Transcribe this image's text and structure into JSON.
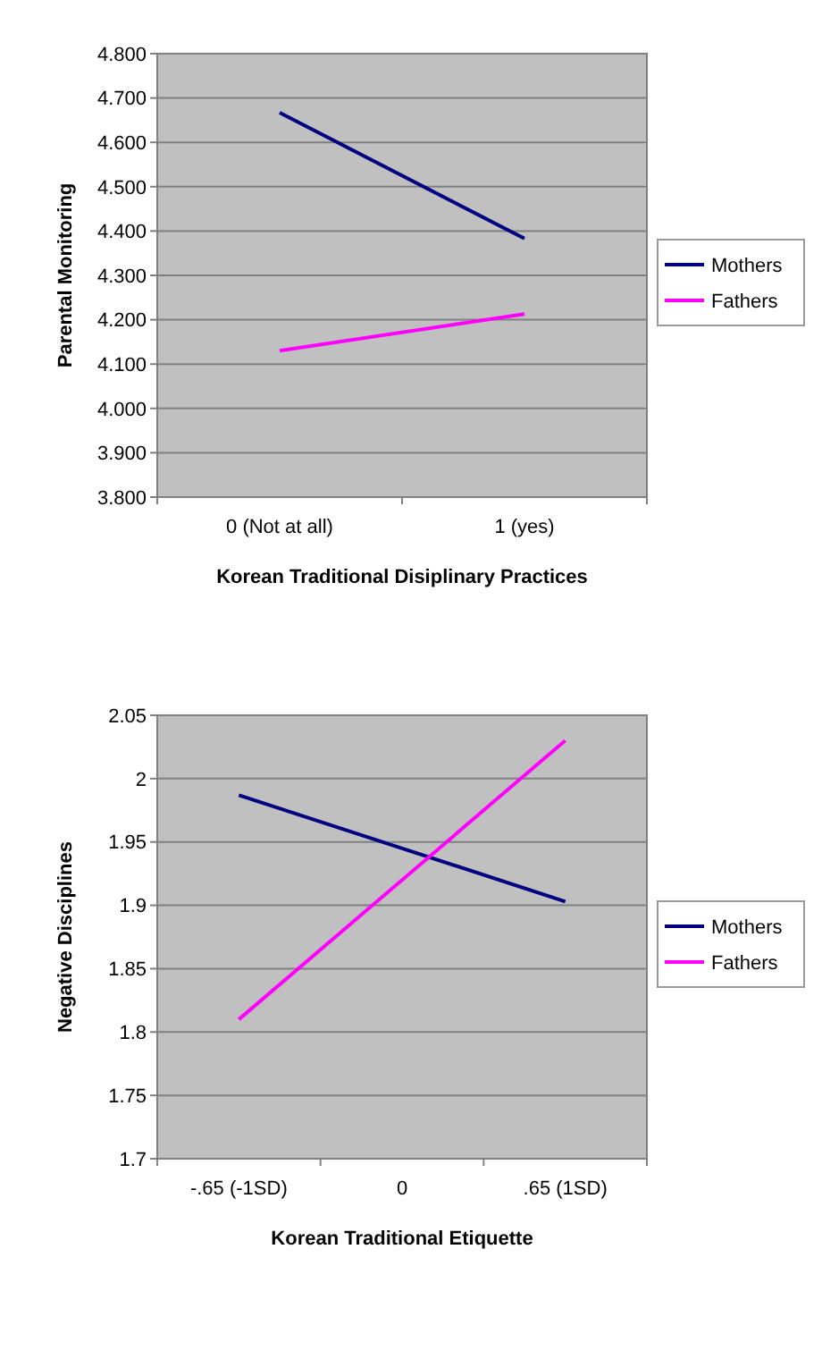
{
  "chart_data": [
    {
      "type": "line",
      "xlabel": "Korean Traditional Disiplinary Practices",
      "ylabel": "Parental Monitoring",
      "categories": [
        "0 (Not at all)",
        "1 (yes)"
      ],
      "series": [
        {
          "name": "Mothers",
          "color": "#000080",
          "values": [
            4.667,
            4.383
          ]
        },
        {
          "name": "Fathers",
          "color": "#ff00ff",
          "values": [
            4.13,
            4.213
          ]
        }
      ],
      "ylim": [
        3.8,
        4.8
      ],
      "yticks": [
        {
          "value": 3.8,
          "label": "3.800"
        },
        {
          "value": 3.9,
          "label": "3.900"
        },
        {
          "value": 4.0,
          "label": "4.000"
        },
        {
          "value": 4.1,
          "label": "4.100"
        },
        {
          "value": 4.2,
          "label": "4.200"
        },
        {
          "value": 4.3,
          "label": "4.300"
        },
        {
          "value": 4.4,
          "label": "4.400"
        },
        {
          "value": 4.5,
          "label": "4.500"
        },
        {
          "value": 4.6,
          "label": "4.600"
        },
        {
          "value": 4.7,
          "label": "4.700"
        },
        {
          "value": 4.8,
          "label": "4.800"
        }
      ],
      "grid": "y",
      "legend": "right",
      "marker": "none",
      "line_style": "solid"
    },
    {
      "type": "line",
      "xlabel": "Korean Traditional Etiquette",
      "ylabel": "Negative Disciplines",
      "categories": [
        "-.65 (-1SD)",
        "0",
        ".65 (1SD)"
      ],
      "series": [
        {
          "name": "Mothers",
          "color": "#000080",
          "values": [
            1.987,
            1.945,
            1.903
          ]
        },
        {
          "name": "Fathers",
          "color": "#ff00ff",
          "values": [
            1.81,
            1.92,
            2.03
          ]
        }
      ],
      "ylim": [
        1.7,
        2.05
      ],
      "yticks": [
        1.7,
        1.75,
        1.8,
        1.85,
        1.9,
        1.95,
        2,
        2.05
      ],
      "grid": "y",
      "legend": "right",
      "marker": "none",
      "line_style": "solid"
    }
  ]
}
